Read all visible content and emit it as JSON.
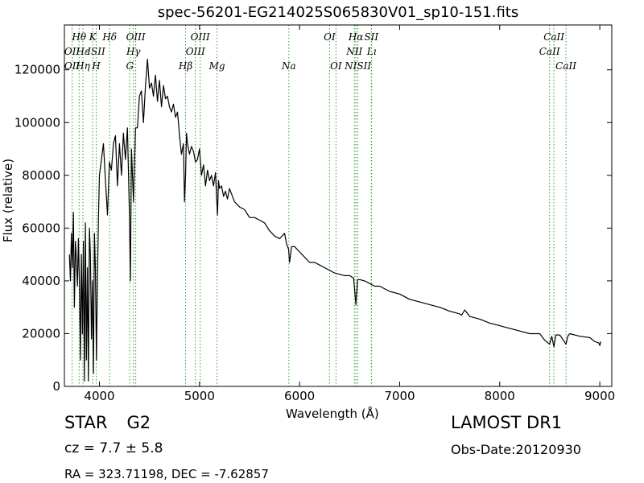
{
  "chart_data": {
    "type": "line",
    "title": "spec-56201-EG214025S065830V01_sp10-151.fits",
    "xlabel": "Wavelength (Å)",
    "ylabel": "Flux (relative)",
    "xlim": [
      3650,
      9120
    ],
    "ylim": [
      0,
      137000
    ],
    "x_ticks": [
      4000,
      5000,
      6000,
      7000,
      8000,
      9000
    ],
    "y_ticks": [
      0,
      20000,
      40000,
      60000,
      80000,
      100000,
      120000
    ],
    "grid": false,
    "line_color": "#000000",
    "marker_color": "#2ca02c",
    "series": [
      {
        "x": [
          3700,
          3710,
          3720,
          3730,
          3740,
          3750,
          3760,
          3770,
          3780,
          3790,
          3800,
          3810,
          3820,
          3830,
          3840,
          3850,
          3860,
          3870,
          3880,
          3890,
          3900,
          3910,
          3920,
          3930,
          3940,
          3950,
          3960,
          3970,
          3980,
          3990,
          4000,
          4020,
          4040,
          4060,
          4080,
          4100,
          4120,
          4140,
          4160,
          4180,
          4200,
          4220,
          4240,
          4260,
          4280,
          4300,
          4310,
          4320,
          4340,
          4360,
          4380,
          4400,
          4420,
          4440,
          4460,
          4480,
          4500,
          4520,
          4540,
          4560,
          4580,
          4600,
          4620,
          4640,
          4660,
          4680,
          4700,
          4720,
          4740,
          4760,
          4780,
          4800,
          4820,
          4840,
          4850,
          4861,
          4870,
          4880,
          4900,
          4920,
          4940,
          4960,
          4980,
          5000,
          5020,
          5040,
          5060,
          5080,
          5100,
          5120,
          5140,
          5160,
          5170,
          5180,
          5190,
          5200,
          5220,
          5240,
          5260,
          5280,
          5300,
          5350,
          5400,
          5450,
          5500,
          5550,
          5600,
          5650,
          5700,
          5750,
          5800,
          5850,
          5870,
          5890,
          5900,
          5920,
          5950,
          6000,
          6050,
          6100,
          6150,
          6200,
          6250,
          6300,
          6350,
          6400,
          6450,
          6500,
          6540,
          6563,
          6580,
          6600,
          6650,
          6700,
          6750,
          6800,
          6900,
          7000,
          7100,
          7200,
          7300,
          7400,
          7500,
          7550,
          7600,
          7620,
          7650,
          7700,
          7800,
          7900,
          8000,
          8100,
          8200,
          8300,
          8400,
          8450,
          8498,
          8520,
          8542,
          8560,
          8600,
          8662,
          8680,
          8700,
          8800,
          8900,
          8950,
          8990,
          9000,
          9010
        ],
        "y": [
          50000,
          40000,
          58000,
          45000,
          66000,
          30000,
          55000,
          48000,
          38000,
          56000,
          40000,
          10000,
          50000,
          20000,
          55000,
          2000,
          62000,
          10000,
          45000,
          2000,
          60000,
          50000,
          18000,
          40000,
          5000,
          58000,
          45000,
          10000,
          40000,
          64000,
          80000,
          86000,
          92000,
          78000,
          65000,
          85000,
          82000,
          92000,
          95000,
          76000,
          92000,
          80000,
          96000,
          86000,
          98000,
          65000,
          40000,
          90000,
          70000,
          98000,
          98000,
          110000,
          112000,
          100000,
          114000,
          124000,
          113000,
          115000,
          110000,
          118000,
          108000,
          116000,
          106000,
          114000,
          109000,
          110000,
          106000,
          104000,
          107000,
          102000,
          104000,
          95000,
          88000,
          92000,
          70000,
          80000,
          96000,
          92000,
          88000,
          91000,
          89000,
          85000,
          86000,
          90000,
          80000,
          84000,
          76000,
          82000,
          78000,
          80000,
          76000,
          81000,
          72000,
          65000,
          78000,
          75000,
          76000,
          72000,
          74000,
          71000,
          75000,
          70000,
          68000,
          67000,
          64000,
          64000,
          63000,
          62000,
          59000,
          57000,
          56000,
          58000,
          54000,
          52000,
          47000,
          53000,
          53000,
          51000,
          49000,
          47000,
          47000,
          46000,
          45000,
          44000,
          43000,
          42500,
          42000,
          42000,
          41000,
          31000,
          40500,
          40500,
          40000,
          39000,
          38000,
          38000,
          36000,
          35000,
          33000,
          32000,
          31000,
          30000,
          28500,
          28000,
          27500,
          27000,
          29000,
          26500,
          25500,
          24000,
          23000,
          22000,
          21000,
          20000,
          20000,
          17500,
          16000,
          19000,
          15000,
          19500,
          19500,
          16000,
          19000,
          20000,
          19000,
          18500,
          17000,
          16500,
          15500,
          17000
        ]
      }
    ],
    "lines_top": [
      {
        "label": "Hθ",
        "x": 3797
      },
      {
        "label": "K",
        "x": 3933
      },
      {
        "label": "Hδ",
        "x": 4102
      },
      {
        "label": "OIII",
        "x": 4363
      },
      {
        "label": "OIII",
        "x": 5007
      },
      {
        "label": "OI",
        "x": 6300
      },
      {
        "label": "Hα",
        "x": 6563
      },
      {
        "label": "SII",
        "x": 6717
      },
      {
        "label": "CaII",
        "x": 8542
      }
    ],
    "lines_second": [
      {
        "label": "OII",
        "x": 3727
      },
      {
        "label": "Hε",
        "x": 3835
      },
      {
        "label": "ISII",
        "x": 3968
      },
      {
        "label": "Hγ",
        "x": 4340
      },
      {
        "label": "OIII",
        "x": 4959
      },
      {
        "label": "NII",
        "x": 6548
      },
      {
        "label": "Lı",
        "x": 6720
      },
      {
        "label": "CaII",
        "x": 8498
      }
    ],
    "lines_third": [
      {
        "label": "OII",
        "x": 3727
      },
      {
        "label": "Hη",
        "x": 3835
      },
      {
        "label": "H",
        "x": 3968
      },
      {
        "label": "G",
        "x": 4304
      },
      {
        "label": "Hβ",
        "x": 4861
      },
      {
        "label": "Mg",
        "x": 5175
      },
      {
        "label": "Na",
        "x": 5893
      },
      {
        "label": "OI",
        "x": 6364
      },
      {
        "label": "NISII",
        "x": 6583
      },
      {
        "label": "CaII",
        "x": 8662
      }
    ]
  },
  "info": {
    "class": "STAR",
    "subclass": "G2",
    "cz": "cz = 7.7 ± 5.8",
    "radec": "RA = 323.71198, DEC = -7.62857",
    "survey": "LAMOST DR1",
    "obs_date": "Obs-Date:20120930"
  }
}
